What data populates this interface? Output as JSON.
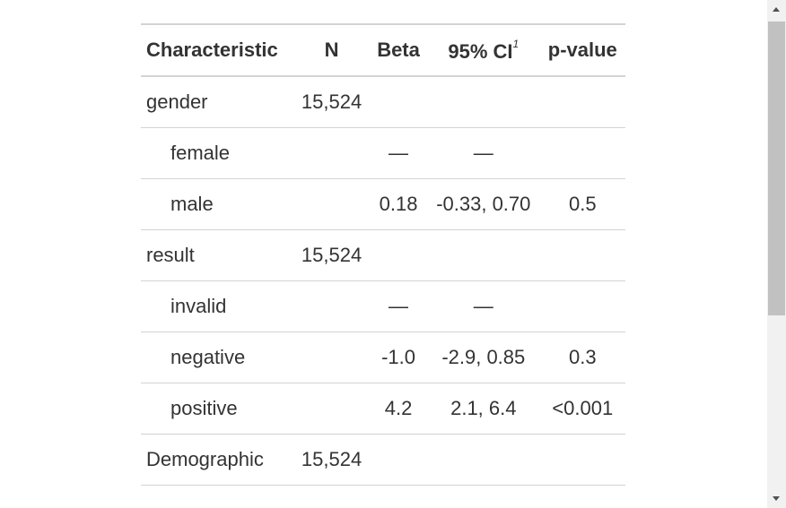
{
  "table": {
    "columns": [
      "Characteristic",
      "N",
      "Beta",
      "95% CI",
      "p-value"
    ],
    "footnote_mark": "1",
    "rows": [
      {
        "cells": [
          "gender",
          "15,524",
          null,
          null,
          null
        ],
        "indent": false
      },
      {
        "cells": [
          "female",
          null,
          "—",
          "—",
          null
        ],
        "indent": true
      },
      {
        "cells": [
          "male",
          null,
          "0.18",
          "-0.33, 0.70",
          "0.5"
        ],
        "indent": true
      },
      {
        "cells": [
          "result",
          "15,524",
          null,
          null,
          null
        ],
        "indent": false
      },
      {
        "cells": [
          "invalid",
          null,
          "—",
          "—",
          null
        ],
        "indent": true
      },
      {
        "cells": [
          "negative",
          null,
          "-1.0",
          "-2.9, 0.85",
          "0.3"
        ],
        "indent": true
      },
      {
        "cells": [
          "positive",
          null,
          "4.2",
          "2.1, 6.4",
          "<0.001"
        ],
        "indent": true
      },
      {
        "cells": [
          "Demographic",
          "15,524",
          null,
          null,
          null
        ],
        "indent": false
      }
    ]
  }
}
